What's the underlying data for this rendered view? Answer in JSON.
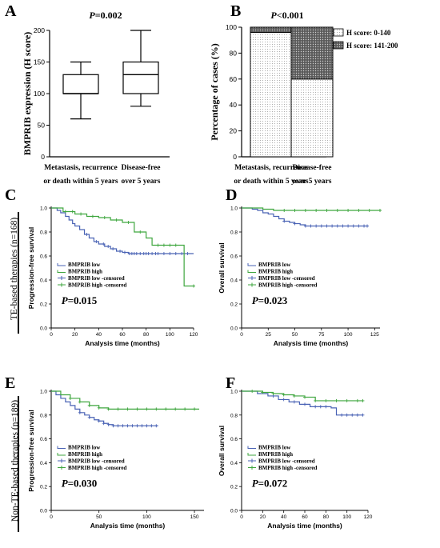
{
  "side_labels": {
    "te": "TE-based therapies (n=168)",
    "nonte": "Non-TE-based therapies (n=189)"
  },
  "chart_data": [
    {
      "panel": "A",
      "type": "box",
      "title": "P=0.002",
      "ylabel": "BMPRIB expression (H score)",
      "categories": [
        "Metastasis, recurrence or death within 5 years",
        "Disease-free over 5 years"
      ],
      "category_lines": [
        [
          "Metastasis, recurrence",
          "or death within 5 years"
        ],
        [
          "Disease-free",
          "over 5 years"
        ]
      ],
      "boxes": [
        {
          "min": 60,
          "q1": 100,
          "median": 100,
          "q3": 130,
          "max": 150
        },
        {
          "min": 80,
          "q1": 100,
          "median": 130,
          "q3": 150,
          "max": 200
        }
      ],
      "ylim": [
        0,
        200
      ],
      "yticks": [
        0,
        50,
        100,
        150,
        200
      ]
    },
    {
      "panel": "B",
      "type": "bar",
      "stacked": true,
      "title": "P<0.001",
      "ylabel": "Percentage of cases (%)",
      "categories": [
        "Metastasis, recurrence or death within 5 years",
        "Disease-free over 5 years"
      ],
      "category_lines": [
        [
          "Metastasis, recurrence",
          "or death within 5 years"
        ],
        [
          "Disease-free",
          "over 5 years"
        ]
      ],
      "series": [
        {
          "name": "H score: 0-140",
          "values": [
            96,
            60
          ],
          "fill": "light-dots"
        },
        {
          "name": "H score: 141-200",
          "values": [
            4,
            40
          ],
          "fill": "dark-dots"
        }
      ],
      "ylim": [
        0,
        100
      ],
      "yticks": [
        0,
        20,
        40,
        60,
        80,
        100
      ],
      "legend": "top-right"
    },
    {
      "panel": "C",
      "type": "line",
      "step": true,
      "ylabel": "Progression-free survival",
      "xlabel": "Analysis time (months)",
      "pvalue": "P=0.015",
      "xlim": [
        0,
        120
      ],
      "xticks": [
        0,
        20,
        40,
        60,
        80,
        100,
        120
      ],
      "ylim": [
        0,
        1
      ],
      "yticks": [
        "0.0",
        "0.2",
        "0.4",
        "0.6",
        "0.8",
        "1.0"
      ],
      "legend": [
        "BMPRIB low",
        "BMPRIB high",
        "BMPRIB low -censored",
        "BMPRIB high -censored"
      ],
      "colors": {
        "low": "#4a63b5",
        "high": "#3fa63f"
      },
      "series": [
        {
          "group": "low",
          "x": [
            0,
            5,
            8,
            12,
            15,
            18,
            20,
            24,
            28,
            32,
            36,
            40,
            45,
            50,
            55,
            60,
            65,
            120
          ],
          "y": [
            1.0,
            0.98,
            0.96,
            0.93,
            0.9,
            0.87,
            0.85,
            0.82,
            0.78,
            0.75,
            0.72,
            0.7,
            0.68,
            0.66,
            0.64,
            0.63,
            0.62,
            0.62
          ],
          "censored_x": [
            30,
            38,
            44,
            48,
            52,
            58,
            62,
            66,
            68,
            70,
            72,
            75,
            78,
            80,
            82,
            85,
            88,
            90,
            95,
            100,
            105,
            110,
            115
          ]
        },
        {
          "group": "high",
          "x": [
            0,
            10,
            20,
            30,
            40,
            50,
            60,
            70,
            80,
            85,
            110,
            112,
            120
          ],
          "y": [
            1.0,
            0.97,
            0.95,
            0.93,
            0.92,
            0.9,
            0.88,
            0.8,
            0.75,
            0.69,
            0.69,
            0.35,
            0.35
          ],
          "censored_x": [
            12,
            18,
            25,
            35,
            45,
            55,
            65,
            75,
            90,
            95,
            100,
            105,
            120
          ]
        }
      ]
    },
    {
      "panel": "D",
      "type": "line",
      "step": true,
      "ylabel": "Overall survival",
      "xlabel": "Analysis time (months)",
      "pvalue": "P=0.023",
      "xlim": [
        0,
        130
      ],
      "xticks": [
        0,
        25,
        50,
        75,
        100,
        125
      ],
      "ylim": [
        0,
        1
      ],
      "yticks": [
        "0.0",
        "0.2",
        "0.4",
        "0.6",
        "0.8",
        "1.0"
      ],
      "legend": [
        "BMPRIB low",
        "BMPRIB high",
        "BMPRIB low -censored",
        "BMPRIB high -censored"
      ],
      "colors": {
        "low": "#4a63b5",
        "high": "#3fa63f"
      },
      "series": [
        {
          "group": "low",
          "x": [
            0,
            10,
            15,
            20,
            25,
            30,
            35,
            40,
            45,
            50,
            55,
            60,
            65,
            118
          ],
          "y": [
            1.0,
            0.99,
            0.98,
            0.96,
            0.95,
            0.93,
            0.91,
            0.89,
            0.88,
            0.87,
            0.86,
            0.85,
            0.85,
            0.85
          ],
          "censored_x": [
            40,
            50,
            60,
            65,
            70,
            75,
            80,
            85,
            90,
            95,
            100,
            105,
            110,
            115,
            118
          ]
        },
        {
          "group": "high",
          "x": [
            0,
            20,
            30,
            35,
            130
          ],
          "y": [
            1.0,
            0.99,
            0.98,
            0.98,
            0.98
          ],
          "censored_x": [
            40,
            50,
            60,
            70,
            80,
            90,
            100,
            110,
            120,
            130
          ]
        }
      ]
    },
    {
      "panel": "E",
      "type": "line",
      "step": true,
      "ylabel": "Progression-free survival",
      "xlabel": "Analysis time (months)",
      "pvalue": "P=0.030",
      "xlim": [
        0,
        160
      ],
      "xticks": [
        0,
        50,
        100,
        150
      ],
      "ylim": [
        0,
        1
      ],
      "yticks": [
        "0.0",
        "0.2",
        "0.4",
        "0.6",
        "0.8",
        "1.0"
      ],
      "legend": [
        "BMPRIB low",
        "BMPRIB high",
        "BMPRIB low -censored",
        "BMPRIB high -censored"
      ],
      "colors": {
        "low": "#4a63b5",
        "high": "#3fa63f"
      },
      "series": [
        {
          "group": "low",
          "x": [
            0,
            5,
            10,
            15,
            20,
            25,
            30,
            35,
            40,
            45,
            50,
            55,
            60,
            65,
            112
          ],
          "y": [
            1.0,
            0.97,
            0.94,
            0.91,
            0.88,
            0.85,
            0.82,
            0.8,
            0.78,
            0.76,
            0.75,
            0.73,
            0.72,
            0.71,
            0.71
          ],
          "censored_x": [
            30,
            40,
            50,
            55,
            60,
            65,
            70,
            75,
            80,
            85,
            90,
            95,
            100,
            105,
            110
          ]
        },
        {
          "group": "high",
          "x": [
            0,
            10,
            20,
            30,
            40,
            50,
            60,
            155
          ],
          "y": [
            1.0,
            0.97,
            0.94,
            0.91,
            0.88,
            0.86,
            0.85,
            0.85
          ],
          "censored_x": [
            20,
            30,
            40,
            50,
            60,
            70,
            80,
            90,
            100,
            110,
            120,
            130,
            140,
            150
          ]
        }
      ]
    },
    {
      "panel": "F",
      "type": "line",
      "step": true,
      "ylabel": "Overall survival",
      "xlabel": "Analysis time (months)",
      "pvalue": "P=0.072",
      "xlim": [
        0,
        120
      ],
      "xticks": [
        0,
        20,
        40,
        60,
        80,
        100,
        120
      ],
      "ylim": [
        0,
        1
      ],
      "yticks": [
        "0.0",
        "0.2",
        "0.4",
        "0.6",
        "0.8",
        "1.0"
      ],
      "legend": [
        "BMPRIB low",
        "BMPRIB high",
        "BMPRIB low -censored",
        "BMPRIB high -censored"
      ],
      "colors": {
        "low": "#4a63b5",
        "high": "#3fa63f"
      },
      "series": [
        {
          "group": "low",
          "x": [
            0,
            15,
            25,
            35,
            45,
            55,
            65,
            85,
            90,
            115
          ],
          "y": [
            1.0,
            0.98,
            0.96,
            0.93,
            0.91,
            0.89,
            0.87,
            0.86,
            0.8,
            0.8
          ],
          "censored_x": [
            30,
            40,
            50,
            60,
            70,
            75,
            80,
            95,
            100,
            105,
            110,
            115
          ]
        },
        {
          "group": "high",
          "x": [
            0,
            20,
            30,
            40,
            50,
            60,
            70,
            115
          ],
          "y": [
            1.0,
            0.99,
            0.98,
            0.97,
            0.96,
            0.95,
            0.92,
            0.92
          ],
          "censored_x": [
            10,
            20,
            30,
            40,
            50,
            60,
            70,
            80,
            90,
            100,
            110,
            115
          ]
        }
      ]
    }
  ]
}
